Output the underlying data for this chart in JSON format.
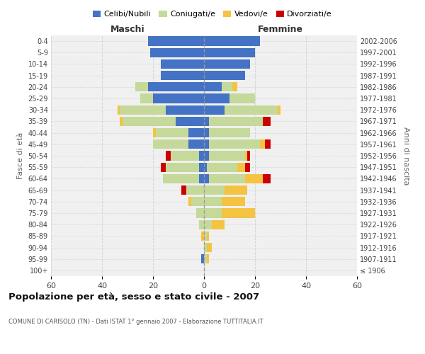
{
  "age_groups": [
    "100+",
    "95-99",
    "90-94",
    "85-89",
    "80-84",
    "75-79",
    "70-74",
    "65-69",
    "60-64",
    "55-59",
    "50-54",
    "45-49",
    "40-44",
    "35-39",
    "30-34",
    "25-29",
    "20-24",
    "15-19",
    "10-14",
    "5-9",
    "0-4"
  ],
  "birth_years": [
    "≤ 1906",
    "1907-1911",
    "1912-1916",
    "1917-1921",
    "1922-1926",
    "1927-1931",
    "1932-1936",
    "1937-1941",
    "1942-1946",
    "1947-1951",
    "1952-1956",
    "1957-1961",
    "1962-1966",
    "1967-1971",
    "1972-1976",
    "1977-1981",
    "1982-1986",
    "1987-1991",
    "1992-1996",
    "1997-2001",
    "2002-2006"
  ],
  "maschi": {
    "celibi": [
      0,
      1,
      0,
      0,
      0,
      0,
      0,
      0,
      2,
      2,
      2,
      6,
      6,
      11,
      15,
      20,
      22,
      17,
      17,
      21,
      22
    ],
    "coniugati": [
      0,
      0,
      0,
      0,
      2,
      3,
      5,
      7,
      14,
      13,
      11,
      14,
      13,
      21,
      18,
      5,
      5,
      0,
      0,
      0,
      0
    ],
    "vedovi": [
      0,
      0,
      0,
      1,
      0,
      0,
      1,
      0,
      0,
      0,
      0,
      0,
      1,
      1,
      1,
      0,
      0,
      0,
      0,
      0,
      0
    ],
    "divorziati": [
      0,
      0,
      0,
      0,
      0,
      0,
      0,
      2,
      0,
      2,
      2,
      0,
      0,
      0,
      0,
      0,
      0,
      0,
      0,
      0,
      0
    ]
  },
  "femmine": {
    "nubili": [
      0,
      0,
      0,
      0,
      0,
      0,
      0,
      0,
      2,
      1,
      2,
      2,
      2,
      2,
      8,
      10,
      7,
      16,
      18,
      20,
      22
    ],
    "coniugate": [
      0,
      1,
      1,
      1,
      3,
      7,
      7,
      8,
      14,
      12,
      14,
      20,
      16,
      21,
      21,
      10,
      4,
      0,
      0,
      0,
      0
    ],
    "vedove": [
      0,
      1,
      2,
      1,
      5,
      13,
      9,
      9,
      7,
      3,
      1,
      2,
      0,
      0,
      1,
      0,
      2,
      0,
      0,
      0,
      0
    ],
    "divorziate": [
      0,
      0,
      0,
      0,
      0,
      0,
      0,
      0,
      3,
      2,
      1,
      2,
      0,
      3,
      0,
      0,
      0,
      0,
      0,
      0,
      0
    ]
  },
  "colors": {
    "celibi": "#4472c4",
    "coniugati": "#c5d99a",
    "vedovi": "#f5c342",
    "divorziati": "#cc0000"
  },
  "xlim": 60,
  "title": "Popolazione per età, sesso e stato civile - 2007",
  "subtitle": "COMUNE DI CARISOLO (TN) - Dati ISTAT 1° gennaio 2007 - Elaborazione TUTTITALIA.IT",
  "ylabel": "Fasce di età",
  "ylabel_right": "Anni di nascita",
  "xlabel_maschi": "Maschi",
  "xlabel_femmine": "Femmine",
  "legend_labels": [
    "Celibi/Nubili",
    "Coniugati/e",
    "Vedovi/e",
    "Divorziati/e"
  ],
  "background_color": "#ffffff",
  "plot_bg_color": "#f0f0f0",
  "grid_color": "#cccccc"
}
